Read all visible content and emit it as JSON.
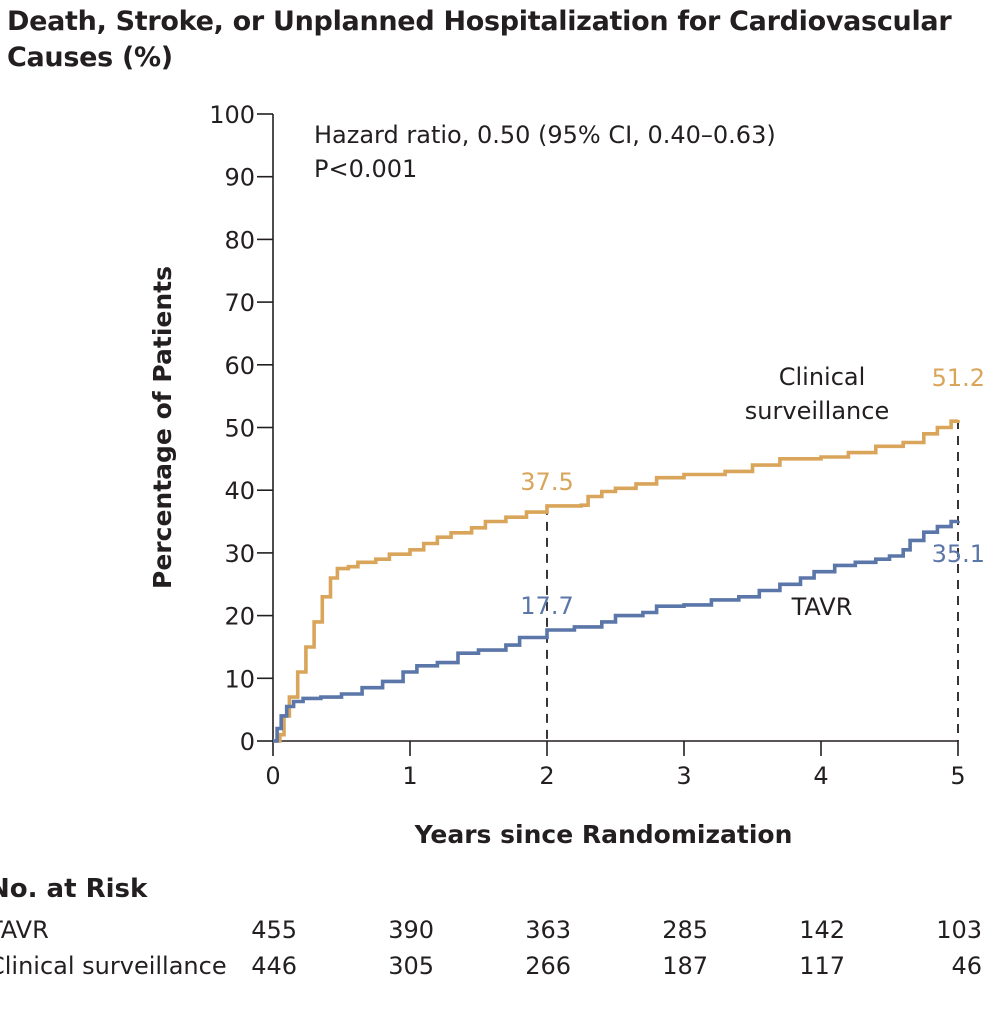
{
  "title": "Death, Stroke, or Unplanned Hospitalization for Cardiovascular Causes (%)",
  "chart_data": {
    "type": "line",
    "title": "Death, Stroke, or Unplanned Hospitalization for Cardiovascular Causes (%)",
    "xlabel": "Years since Randomization",
    "ylabel": "Percentage of Patients",
    "xlim": [
      0,
      5
    ],
    "ylim": [
      0,
      100
    ],
    "xticks": [
      0,
      1,
      2,
      3,
      4,
      5
    ],
    "yticks": [
      0,
      10,
      20,
      30,
      40,
      50,
      60,
      70,
      80,
      90,
      100
    ],
    "annotation": {
      "line1": "Hazard ratio, 0.50 (95% CI, 0.40–0.63)",
      "line2": "P<0.001"
    },
    "series": [
      {
        "name": "Clinical surveillance",
        "label_line1": "Clinical",
        "label_line2": "surveillance",
        "color": "#d9a55a",
        "end_label": "51.2",
        "mid_label": "37.5",
        "points": [
          [
            0,
            0
          ],
          [
            0.02,
            0
          ],
          [
            0.05,
            1
          ],
          [
            0.08,
            4
          ],
          [
            0.12,
            7
          ],
          [
            0.18,
            11
          ],
          [
            0.24,
            15
          ],
          [
            0.3,
            19
          ],
          [
            0.36,
            23
          ],
          [
            0.42,
            26
          ],
          [
            0.47,
            27.5
          ],
          [
            0.55,
            27.8
          ],
          [
            0.62,
            28.5
          ],
          [
            0.75,
            29
          ],
          [
            0.85,
            29.8
          ],
          [
            1.0,
            30.5
          ],
          [
            1.1,
            31.5
          ],
          [
            1.2,
            32.5
          ],
          [
            1.3,
            33.2
          ],
          [
            1.45,
            34
          ],
          [
            1.55,
            35
          ],
          [
            1.7,
            35.7
          ],
          [
            1.85,
            36.5
          ],
          [
            2.0,
            37.5
          ],
          [
            2.25,
            37.6
          ],
          [
            2.3,
            39
          ],
          [
            2.4,
            39.8
          ],
          [
            2.5,
            40.3
          ],
          [
            2.65,
            41
          ],
          [
            2.8,
            42
          ],
          [
            3.0,
            42.5
          ],
          [
            3.3,
            43
          ],
          [
            3.5,
            44
          ],
          [
            3.7,
            45
          ],
          [
            4.0,
            45.3
          ],
          [
            4.2,
            46
          ],
          [
            4.4,
            47
          ],
          [
            4.6,
            47.6
          ],
          [
            4.75,
            49
          ],
          [
            4.85,
            50
          ],
          [
            4.95,
            51
          ],
          [
            5.0,
            51.2
          ]
        ]
      },
      {
        "name": "TAVR",
        "label_line1": "TAVR",
        "color": "#5b76a8",
        "end_label": "35.1",
        "mid_label": "17.7",
        "points": [
          [
            0,
            0
          ],
          [
            0.03,
            2
          ],
          [
            0.06,
            4
          ],
          [
            0.1,
            5.5
          ],
          [
            0.15,
            6.3
          ],
          [
            0.22,
            6.8
          ],
          [
            0.35,
            7
          ],
          [
            0.5,
            7.5
          ],
          [
            0.65,
            8.5
          ],
          [
            0.8,
            9.5
          ],
          [
            0.95,
            11
          ],
          [
            1.05,
            12
          ],
          [
            1.2,
            12.5
          ],
          [
            1.35,
            14
          ],
          [
            1.5,
            14.5
          ],
          [
            1.7,
            15.3
          ],
          [
            1.8,
            16.5
          ],
          [
            2.0,
            17.7
          ],
          [
            2.2,
            18.2
          ],
          [
            2.4,
            19
          ],
          [
            2.5,
            20
          ],
          [
            2.7,
            20.5
          ],
          [
            2.8,
            21.5
          ],
          [
            3.0,
            21.7
          ],
          [
            3.2,
            22.5
          ],
          [
            3.4,
            23
          ],
          [
            3.55,
            24
          ],
          [
            3.7,
            25
          ],
          [
            3.85,
            26
          ],
          [
            3.95,
            27
          ],
          [
            4.1,
            28
          ],
          [
            4.25,
            28.5
          ],
          [
            4.4,
            29
          ],
          [
            4.5,
            29.5
          ],
          [
            4.6,
            30.5
          ],
          [
            4.65,
            32
          ],
          [
            4.75,
            33.3
          ],
          [
            4.85,
            34.2
          ],
          [
            4.95,
            35
          ],
          [
            5.0,
            35.1
          ]
        ]
      }
    ],
    "reference_lines": [
      2,
      5
    ]
  },
  "risk_table": {
    "title": "No. at Risk",
    "rows": [
      {
        "label": "TAVR",
        "values": [
          "455",
          "390",
          "363",
          "285",
          "142",
          "103"
        ]
      },
      {
        "label": "Clinical surveillance",
        "values": [
          "446",
          "305",
          "266",
          "187",
          "117",
          "46"
        ]
      }
    ]
  }
}
